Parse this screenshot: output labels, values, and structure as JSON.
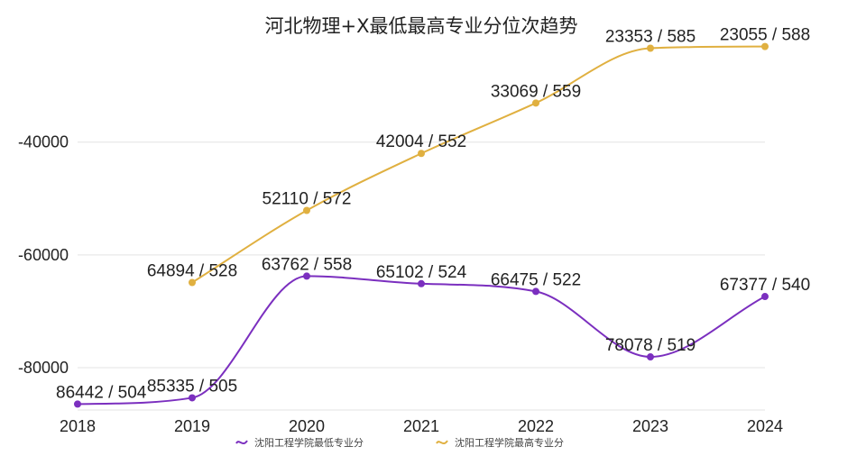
{
  "chart_data": {
    "type": "line",
    "title": "河北物理+X最低最高专业分位次趋势",
    "categories": [
      "2018",
      "2019",
      "2020",
      "2021",
      "2022",
      "2023",
      "2024"
    ],
    "y_axis": {
      "min": -87500,
      "max": -18000,
      "ticks": [
        -40000,
        -60000,
        -80000
      ],
      "tick_labels": [
        "-40000",
        "-60000",
        "-80000"
      ],
      "grid": true
    },
    "legend_position": "bottom",
    "series": [
      {
        "name": "沈阳工程学院最低专业分",
        "color": "#7b2fbf",
        "values": [
          -86442,
          -85335,
          -63762,
          -65102,
          -66475,
          -78078,
          -67377
        ],
        "labels": [
          "86442 / 504",
          "85335 / 505",
          "63762 / 558",
          "65102 / 524",
          "66475 / 522",
          "78078 / 519",
          "67377 / 540"
        ]
      },
      {
        "name": "沈阳工程学院最高专业分",
        "color": "#e0b040",
        "values": [
          null,
          -64894,
          -52110,
          -42004,
          -33069,
          -23353,
          -23055
        ],
        "labels": [
          "",
          "64894 / 528",
          "52110 / 572",
          "42004 / 552",
          "33069 / 559",
          "23353 / 585",
          "23055 / 588"
        ]
      }
    ]
  }
}
